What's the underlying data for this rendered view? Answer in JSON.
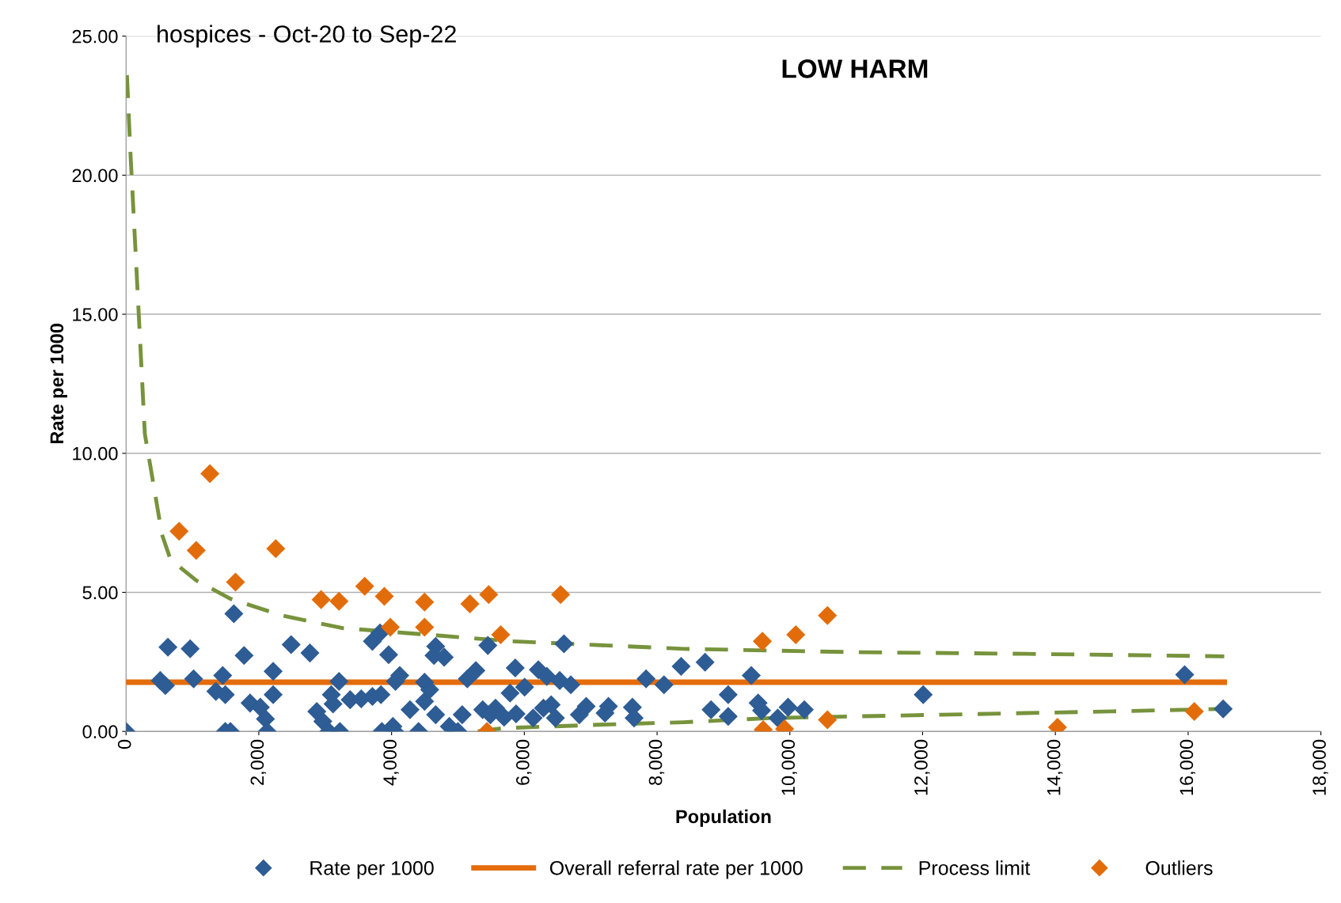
{
  "chart_data": {
    "type": "scatter",
    "title": "hospices - Oct-20 to Sep-22",
    "annotations": [
      "LOW HARM"
    ],
    "xlabel": "Population",
    "ylabel": "Rate per 1000",
    "xlim": [
      0,
      18000
    ],
    "ylim": [
      0,
      25
    ],
    "xticks": [
      {
        "value": 0,
        "label": "0"
      },
      {
        "value": 2000,
        "label": "2,000"
      },
      {
        "value": 4000,
        "label": "4,000"
      },
      {
        "value": 6000,
        "label": "6,000"
      },
      {
        "value": 8000,
        "label": "8,000"
      },
      {
        "value": 10000,
        "label": "10,000"
      },
      {
        "value": 12000,
        "label": "12,000"
      },
      {
        "value": 14000,
        "label": "14,000"
      },
      {
        "value": 16000,
        "label": "16,000"
      },
      {
        "value": 18000,
        "label": "18,000"
      }
    ],
    "yticks": [
      {
        "value": 0,
        "label": "0.00"
      },
      {
        "value": 5,
        "label": "5.00"
      },
      {
        "value": 10,
        "label": "10.00"
      },
      {
        "value": 15,
        "label": "15.00"
      },
      {
        "value": 20,
        "label": "20.00"
      },
      {
        "value": 25,
        "label": "25.00"
      }
    ],
    "grid": "y",
    "legend": "bottom",
    "series": [
      {
        "name": "Rate per 1000",
        "marker": "diamond",
        "color": "#2e5c94",
        "x": [
          0,
          515,
          593,
          631,
          966,
          1018,
          1353,
          1456,
          1495,
          1495,
          1572,
          1624,
          1778,
          1868,
          2023,
          2100,
          2126,
          2216,
          2216,
          2487,
          2770,
          2873,
          2964,
          3054,
          3092,
          3118,
          3208,
          3221,
          3376,
          3543,
          3711,
          3840,
          3711,
          3826,
          3853,
          3956,
          4020,
          4046,
          4059,
          4123,
          4278,
          4407,
          4497,
          4497,
          4574,
          4664,
          4639,
          4793,
          4664,
          4870,
          4999,
          5064,
          5141,
          5270,
          5450,
          5373,
          5489,
          5566,
          5695,
          5785,
          5863,
          5876,
          6004,
          6133,
          6211,
          6339,
          6288,
          6404,
          6468,
          6533,
          6597,
          6700,
          6829,
          6932,
          7216,
          7267,
          7628,
          7654,
          7834,
          8104,
          8362,
          8723,
          8813,
          9071,
          9071,
          9419,
          9522,
          9574,
          9818,
          9973,
          10218,
          12009,
          15948,
          16528
        ],
        "values": [
          0,
          1.83,
          1.65,
          3.03,
          2.97,
          1.89,
          1.44,
          2.01,
          1.32,
          0,
          0,
          4.23,
          2.73,
          1.02,
          0.87,
          0.45,
          0,
          2.16,
          1.32,
          3.12,
          2.82,
          0.72,
          0.36,
          0,
          1.32,
          0.99,
          1.8,
          0,
          1.14,
          1.17,
          1.26,
          1.32,
          3.24,
          3.54,
          0,
          2.76,
          0.18,
          0,
          1.8,
          2.01,
          0.78,
          0,
          1.08,
          1.77,
          1.5,
          3.06,
          2.73,
          2.67,
          0.6,
          0.18,
          0,
          0.6,
          1.89,
          2.19,
          3.09,
          0.78,
          0.6,
          0.84,
          0.51,
          1.38,
          2.28,
          0.63,
          1.59,
          0.48,
          2.22,
          1.98,
          0.84,
          0.96,
          0.48,
          1.83,
          3.15,
          1.68,
          0.6,
          0.9,
          0.66,
          0.9,
          0.87,
          0.48,
          1.89,
          1.68,
          2.34,
          2.49,
          0.78,
          1.32,
          0.54,
          2.01,
          1.02,
          0.75,
          0.48,
          0.87,
          0.78,
          1.32,
          2.04,
          0.81
        ]
      },
      {
        "name": "Overall referral rate per 1000",
        "type": "line",
        "marker": "none",
        "line_style": "solid",
        "color": "#e46c0a",
        "x": [
          0,
          16544
        ],
        "values": [
          1.77,
          1.77
        ]
      },
      {
        "name": "Process limit",
        "type": "line",
        "marker": "none",
        "line_style": "dashed",
        "color": "#77933c",
        "x": [
          13,
          64,
          155,
          283,
          412,
          541,
          670,
          1057,
          1572,
          2345,
          3247,
          4536,
          5824,
          8401,
          10978,
          13555,
          16544
        ],
        "values": [
          23.6,
          20.9,
          16.7,
          10.7,
          8.9,
          7.08,
          6.18,
          5.43,
          4.77,
          4.17,
          3.72,
          3.48,
          3.24,
          2.97,
          2.85,
          2.79,
          2.7
        ]
      },
      {
        "type": "line",
        "marker": "none",
        "line_style": "dashed",
        "color": "#77933c",
        "x": [
          5300,
          5695,
          7113,
          8401,
          9690,
          10978,
          12266,
          13555,
          14843,
          16544
        ],
        "values": [
          0,
          0.12,
          0.24,
          0.33,
          0.48,
          0.54,
          0.6,
          0.66,
          0.72,
          0.81
        ]
      },
      {
        "name": "Outliers",
        "marker": "diamond",
        "color": "#e36c0a",
        "x": [
          799,
          1057,
          1263,
          1649,
          2255,
          2938,
          3208,
          3595,
          3891,
          3981,
          4497,
          4497,
          5180,
          5463,
          5437,
          5644,
          6546,
          9586,
          9599,
          9921,
          10089,
          10566,
          10566,
          14032,
          16093
        ],
        "values": [
          7.2,
          6.51,
          9.27,
          5.37,
          6.57,
          4.74,
          4.68,
          5.22,
          4.86,
          3.75,
          4.65,
          3.75,
          4.59,
          4.92,
          0,
          3.48,
          4.92,
          3.24,
          0.06,
          0.09,
          3.48,
          4.17,
          0.42,
          0.15,
          0.72
        ]
      }
    ]
  }
}
